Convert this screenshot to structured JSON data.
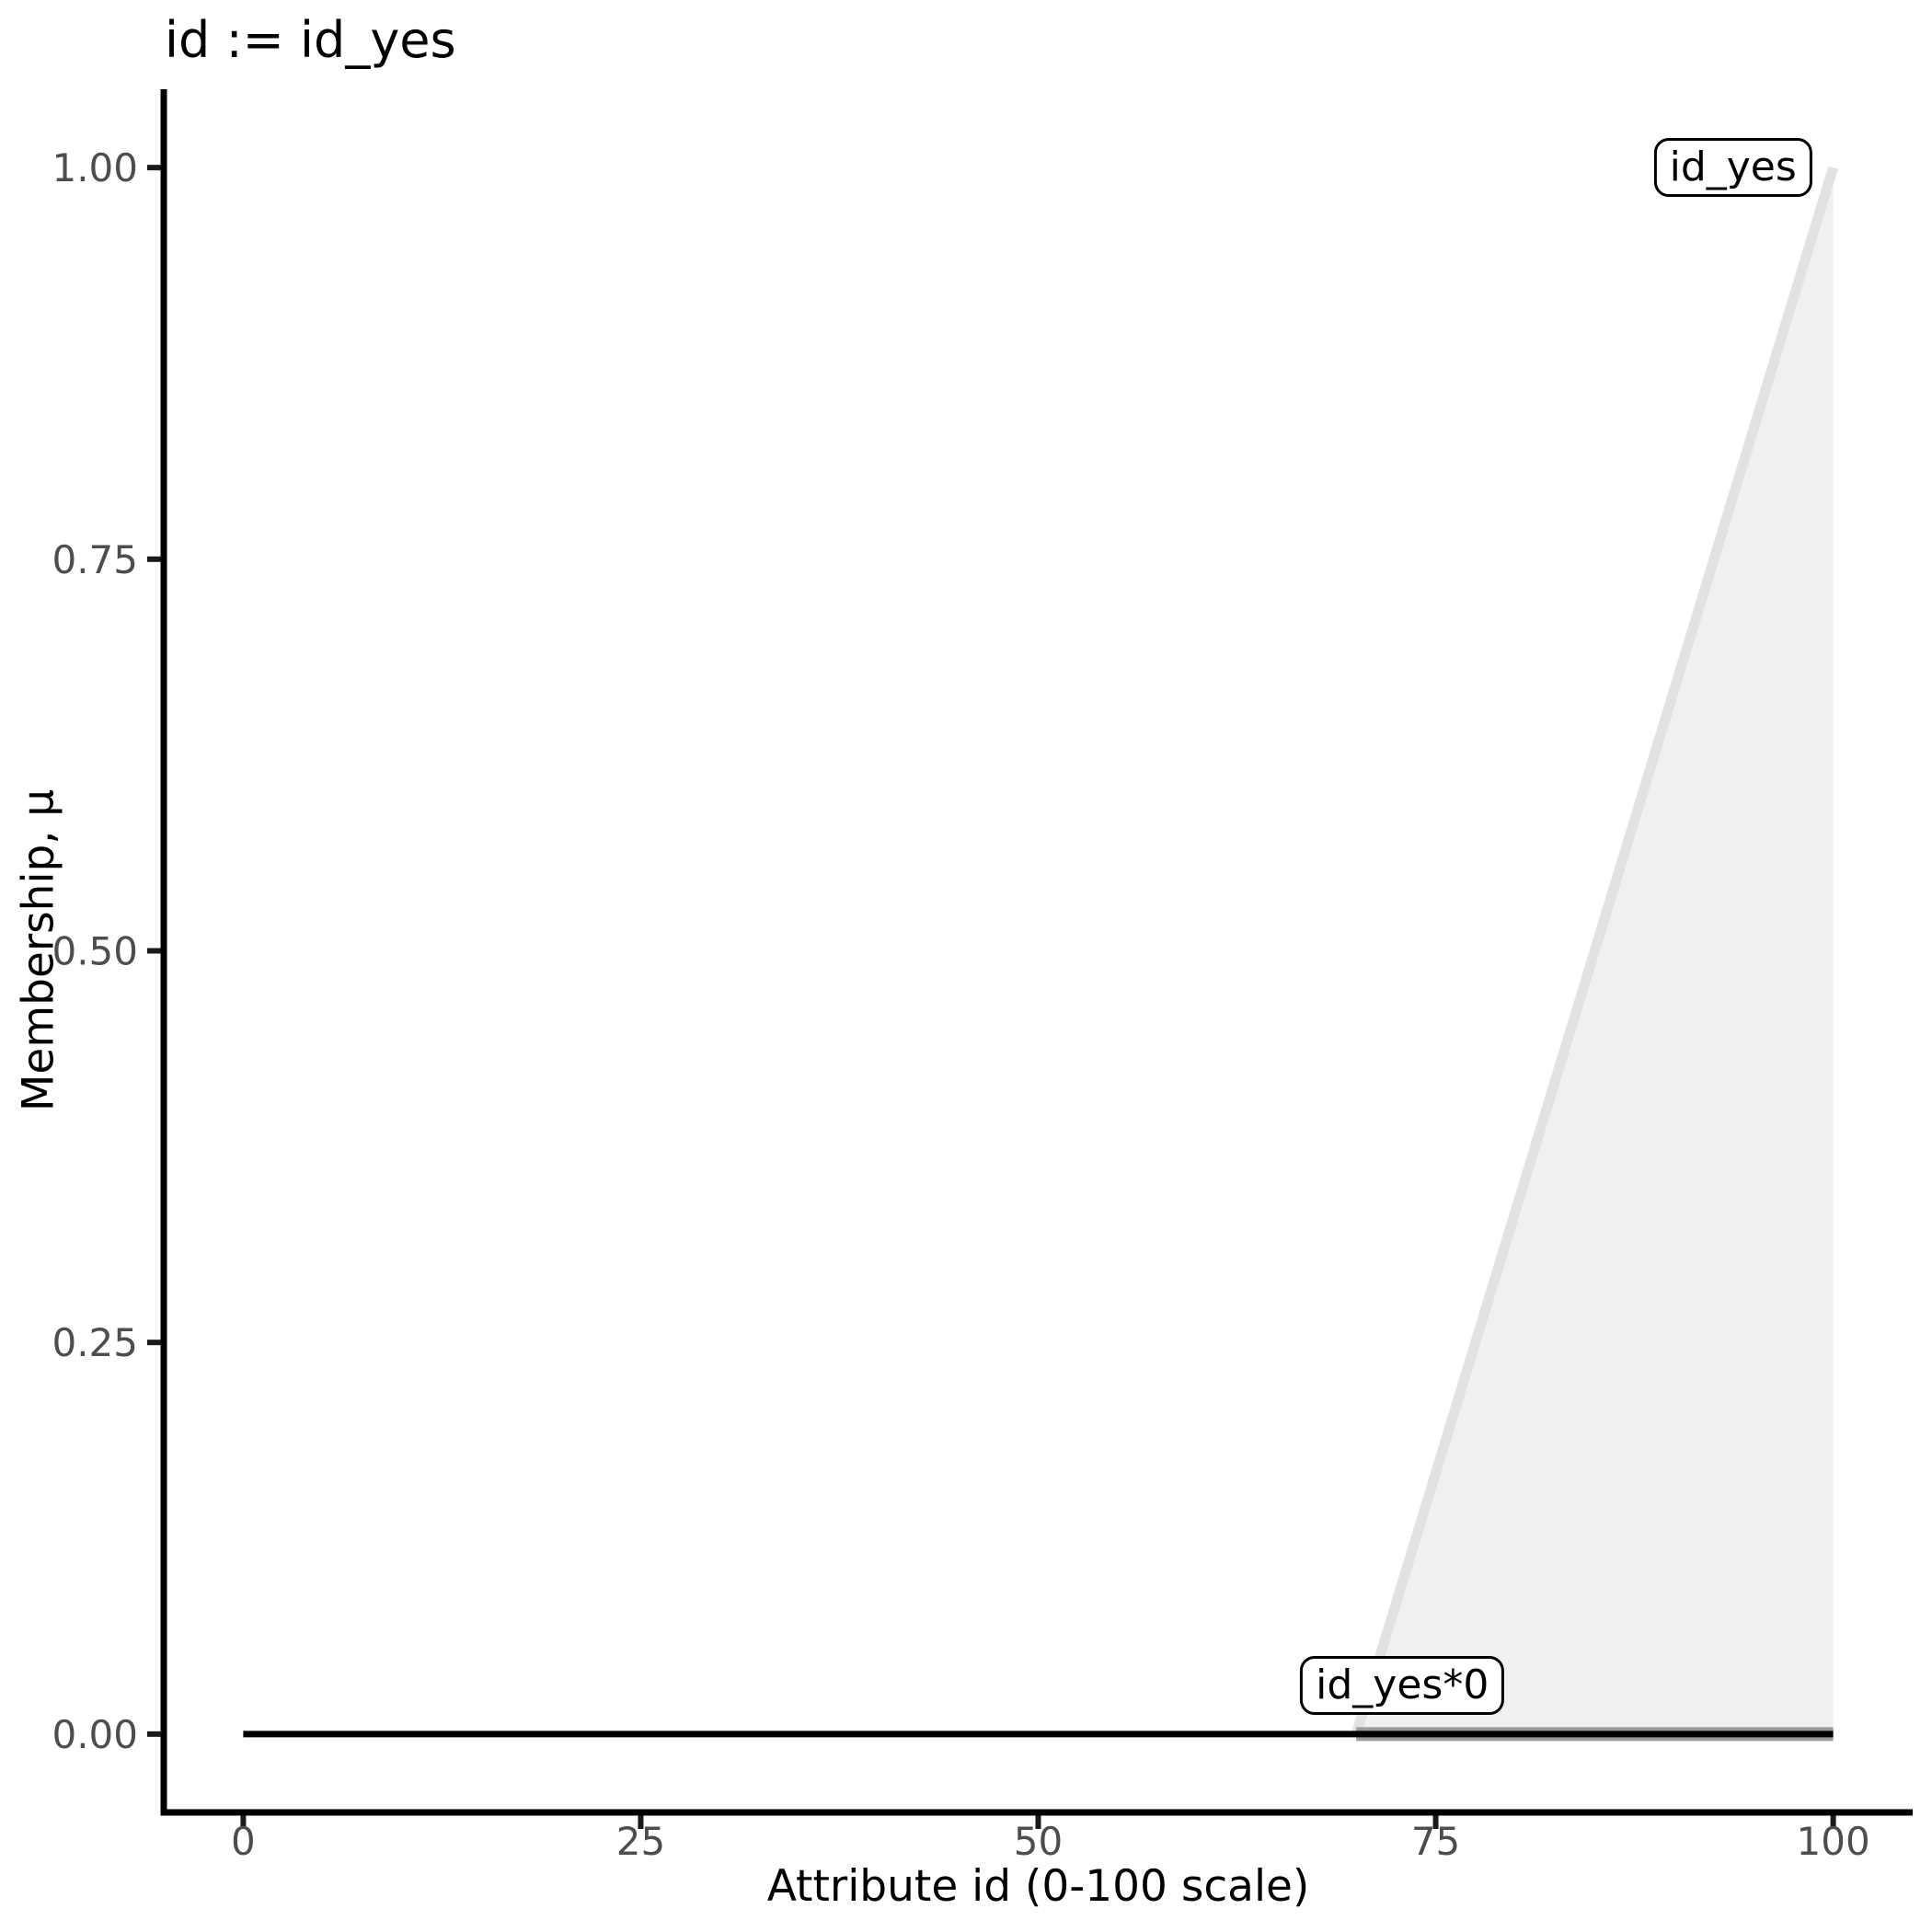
{
  "chart_data": {
    "type": "area",
    "title": "id := id_yes",
    "xlabel": "Attribute id (0-100 scale)",
    "ylabel": "Membership, μ",
    "xlim": [
      0,
      100
    ],
    "ylim": [
      0,
      1
    ],
    "expand_frac": 0.05,
    "grid": false,
    "legend": "none",
    "x_ticks": [
      {
        "value": 0,
        "label": "0"
      },
      {
        "value": 25,
        "label": "25"
      },
      {
        "value": 50,
        "label": "50"
      },
      {
        "value": 75,
        "label": "75"
      },
      {
        "value": 100,
        "label": "100"
      }
    ],
    "y_ticks": [
      {
        "value": 0,
        "label": "0.00"
      },
      {
        "value": 0.25,
        "label": "0.25"
      },
      {
        "value": 0.5,
        "label": "0.50"
      },
      {
        "value": 0.75,
        "label": "0.75"
      },
      {
        "value": 1,
        "label": "1.00"
      }
    ],
    "series": [
      {
        "name": "id_yes",
        "kind": "membership-function",
        "points": [
          [
            70,
            0
          ],
          [
            100,
            1
          ]
        ],
        "baseline": 0,
        "fill_color": "#f0f0f0",
        "line_color": "#e2e2e2",
        "line_width": 11
      },
      {
        "name": "id_yes*0",
        "kind": "activated-support",
        "points": [
          [
            70,
            0
          ],
          [
            100,
            0
          ]
        ],
        "line_color": "#9a9a9a",
        "line_width": 15
      },
      {
        "name": "id_yes*0",
        "kind": "scaled-membership",
        "points": [
          [
            0,
            0
          ],
          [
            100,
            0
          ]
        ],
        "line_color": "#000000",
        "line_width": 7
      }
    ],
    "annotations": [
      {
        "text": "id_yes",
        "x": 93.7,
        "y": 1.0
      },
      {
        "text": "id_yes*0",
        "x": 72.9,
        "y": 0.031
      }
    ]
  },
  "theme": {
    "background": "#ffffff",
    "axis_line_color": "#000000",
    "tick_mark_color": "#1a1a1a",
    "tick_label_color": "#4d4d4d",
    "text_color": "#000000",
    "annotation_border": "#000000",
    "annotation_fill": "#ffffff"
  }
}
